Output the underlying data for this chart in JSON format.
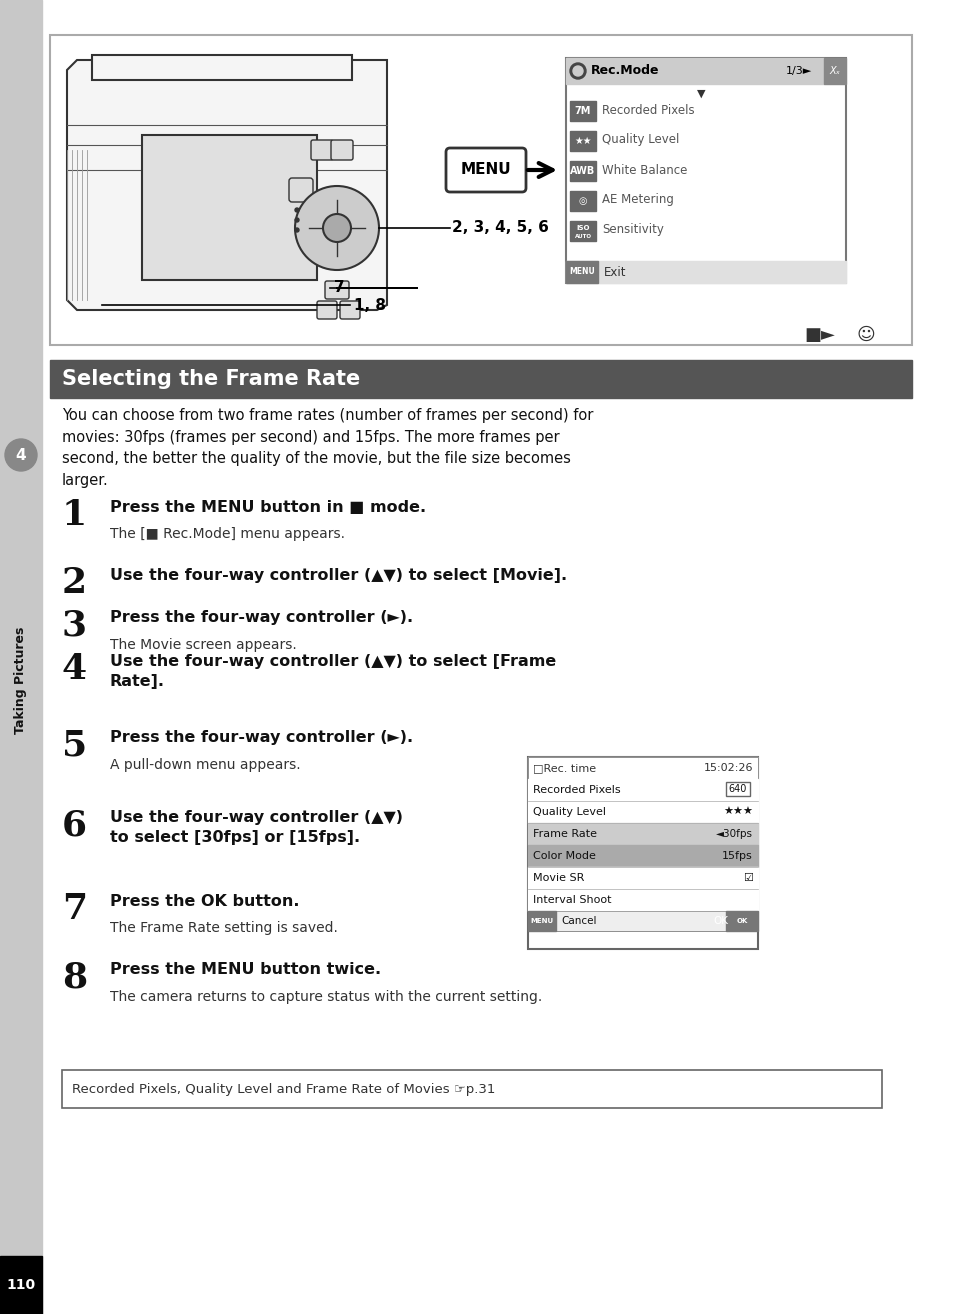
{
  "page_bg": "#ffffff",
  "sidebar_bg": "#c8c8c8",
  "page_number": "110",
  "section_title": "Selecting the Frame Rate",
  "section_title_bg": "#555555",
  "intro_text": "You can choose from two frame rates (number of frames per second) for\nmovies: 30fps (frames per second) and 15fps. The more frames per\nsecond, the better the quality of the movie, but the file size becomes\nlarger.",
  "steps": [
    {
      "num": "1",
      "text": "Press the MENU button in ■ mode.",
      "sub": "The [■ Rec.Mode] menu appears."
    },
    {
      "num": "2",
      "text": "Use the four-way controller (▲▼) to select [Movie].",
      "sub": ""
    },
    {
      "num": "3",
      "text": "Press the four-way controller (►).",
      "sub": "The Movie screen appears."
    },
    {
      "num": "4",
      "text": "Use the four-way controller (▲▼) to select [Frame\nRate].",
      "sub": ""
    },
    {
      "num": "5",
      "text": "Press the four-way controller (►).",
      "sub": "A pull-down menu appears."
    },
    {
      "num": "6",
      "text": "Use the four-way controller (▲▼)\nto select [30fps] or [15fps].",
      "sub": ""
    },
    {
      "num": "7",
      "text": "Press the OK button.",
      "sub": "The Frame Rate setting is saved."
    },
    {
      "num": "8",
      "text": "Press the MENU button twice.",
      "sub": "The camera returns to capture status with the current setting."
    }
  ],
  "note_text": "Recorded Pixels, Quality Level and Frame Rate of Movies ☞p.31",
  "rec_mode_items": [
    "Recorded Pixels",
    "Quality Level",
    "White Balance",
    "AE Metering",
    "Sensitivity"
  ],
  "rec_mode_icons": [
    "7M",
    "★★",
    "AWB",
    "◎",
    "ISO/AUTO"
  ],
  "second_menu_rows": [
    {
      "label": "Recorded Pixels",
      "value": "640",
      "box": true,
      "highlight": false,
      "selected": false
    },
    {
      "label": "Quality Level",
      "value": "★★★",
      "box": false,
      "highlight": false,
      "selected": false
    },
    {
      "label": "Frame Rate",
      "value": "30fps",
      "box": false,
      "highlight": true,
      "selected": false,
      "arrow": true
    },
    {
      "label": "Color Mode",
      "value": "15fps",
      "box": false,
      "highlight": true,
      "selected": true
    },
    {
      "label": "Movie SR",
      "value": "☑",
      "box": false,
      "highlight": false,
      "selected": false
    },
    {
      "label": "Interval Shoot",
      "value": "",
      "box": false,
      "highlight": false,
      "selected": false
    }
  ]
}
